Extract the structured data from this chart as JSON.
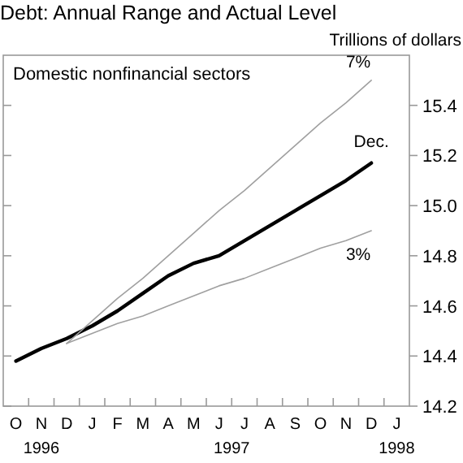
{
  "chart_data": {
    "type": "line",
    "title": "Debt: Annual Range and Actual Level",
    "subtitle": "Domestic nonfinancial sectors",
    "ylabel": "Trillions of dollars",
    "categories": [
      "O",
      "N",
      "D",
      "J",
      "F",
      "M",
      "A",
      "M",
      "J",
      "J",
      "A",
      "S",
      "O",
      "N",
      "D",
      "J"
    ],
    "series": [
      {
        "color": "#000000",
        "values": [
          14.38,
          14.43,
          14.47,
          14.52,
          14.58,
          14.65,
          14.72,
          14.77,
          14.8,
          14.86,
          14.92,
          14.98,
          15.04,
          15.1,
          15.17,
          null
        ]
      },
      {
        "name": "7%",
        "color": "#a0a0a0",
        "values": [
          null,
          null,
          14.45,
          14.54,
          14.63,
          14.71,
          14.8,
          14.89,
          14.98,
          15.06,
          15.15,
          15.24,
          15.33,
          15.41,
          15.5,
          null
        ]
      },
      {
        "name": "3%",
        "color": "#a0a0a0",
        "values": [
          null,
          null,
          14.45,
          14.49,
          14.53,
          14.56,
          14.6,
          14.64,
          14.68,
          14.71,
          14.75,
          14.79,
          14.83,
          14.86,
          14.9,
          null
        ]
      }
    ],
    "annotations": [
      "Dec.",
      "1996",
      "1997",
      "1998"
    ],
    "ylim": [
      14.2,
      15.6
    ],
    "yticks": [
      14.2,
      14.4,
      14.6,
      14.8,
      {
        "value": 15,
        "label": "15.0"
      },
      15.2,
      15.4
    ],
    "grid": false,
    "marker": "none",
    "line_style": "solid"
  }
}
